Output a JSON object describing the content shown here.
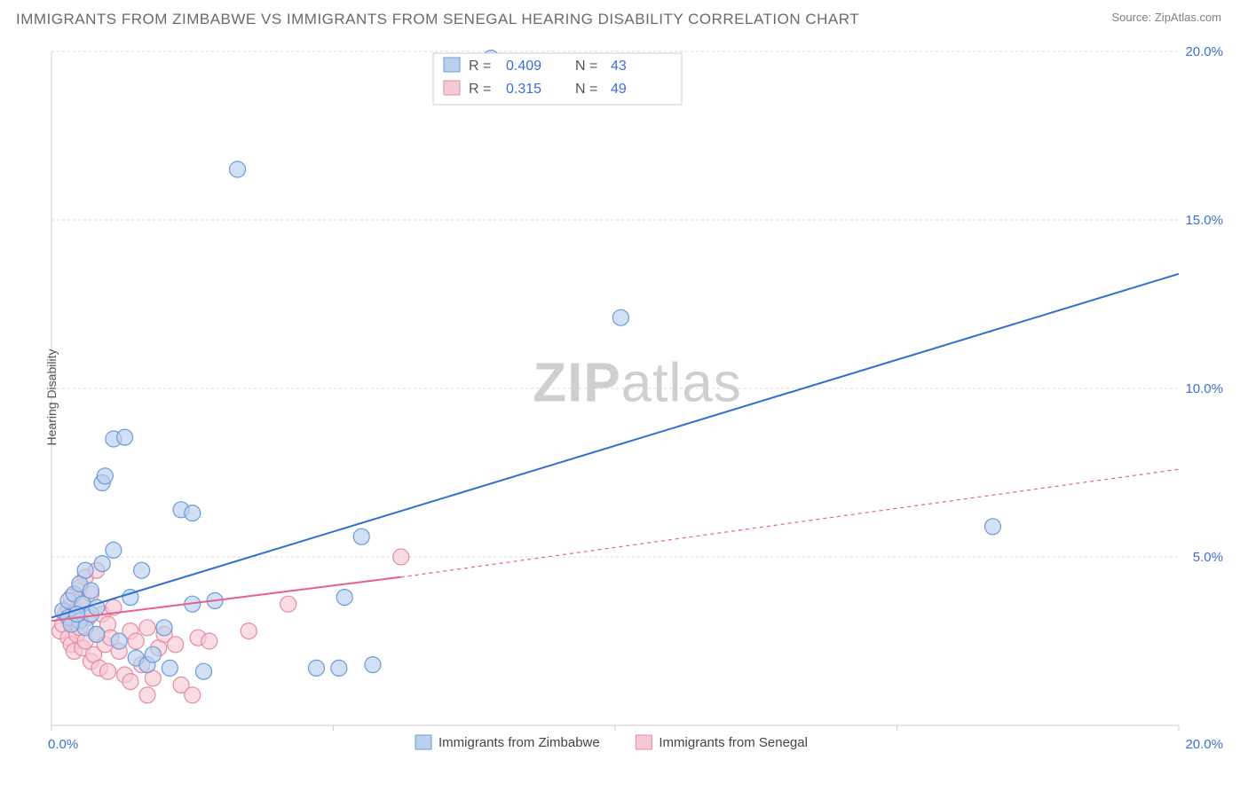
{
  "title": "IMMIGRANTS FROM ZIMBABWE VS IMMIGRANTS FROM SENEGAL HEARING DISABILITY CORRELATION CHART",
  "source_label": "Source: ZipAtlas.com",
  "y_axis_label": "Hearing Disability",
  "watermark_bold": "ZIP",
  "watermark_rest": "atlas",
  "chart": {
    "type": "scatter",
    "background_color": "#ffffff",
    "grid_color": "#d8d8d8",
    "axis_color": "#cfcfcf",
    "text_color": "#6a6a6a",
    "tick_label_color": "#3b6fd6",
    "xlim": [
      0,
      20
    ],
    "ylim": [
      0,
      20
    ],
    "x_ticks": [
      0,
      5,
      10,
      15,
      20
    ],
    "y_ticks": [
      0,
      5,
      10,
      15,
      20
    ],
    "x_tick_labels": [
      "0.0%",
      "",
      "",
      "",
      "20.0%"
    ],
    "y_tick_labels": [
      "",
      "5.0%",
      "10.0%",
      "15.0%",
      "20.0%"
    ],
    "x_origin_label": "0.0%",
    "marker_radius": 9,
    "marker_stroke_width": 1.2,
    "line_width": 2,
    "dash_pattern": "4 4",
    "series": [
      {
        "name": "Immigrants from Zimbabwe",
        "fill": "#b9d0ee",
        "stroke": "#6a9bd8",
        "line_color": "#2f6fd0",
        "trend_start": [
          0,
          3.2
        ],
        "trend_solid_end": [
          20,
          13.4
        ],
        "trend_dash_end": null,
        "R": "0.409",
        "N": "43",
        "points": [
          [
            0.2,
            3.4
          ],
          [
            0.3,
            3.7
          ],
          [
            0.3,
            3.2
          ],
          [
            0.4,
            3.9
          ],
          [
            0.5,
            4.2
          ],
          [
            0.5,
            3.1
          ],
          [
            0.55,
            3.6
          ],
          [
            0.6,
            4.6
          ],
          [
            0.6,
            2.9
          ],
          [
            0.7,
            3.3
          ],
          [
            0.7,
            4.0
          ],
          [
            0.8,
            3.5
          ],
          [
            0.9,
            7.2
          ],
          [
            0.95,
            7.4
          ],
          [
            0.9,
            4.8
          ],
          [
            1.1,
            8.5
          ],
          [
            1.3,
            8.55
          ],
          [
            1.1,
            5.2
          ],
          [
            1.2,
            2.5
          ],
          [
            1.4,
            3.8
          ],
          [
            1.5,
            2.0
          ],
          [
            1.6,
            4.6
          ],
          [
            1.7,
            1.8
          ],
          [
            1.8,
            2.1
          ],
          [
            2.0,
            2.9
          ],
          [
            2.1,
            1.7
          ],
          [
            2.3,
            6.4
          ],
          [
            2.5,
            6.3
          ],
          [
            2.5,
            3.6
          ],
          [
            2.7,
            1.6
          ],
          [
            2.9,
            3.7
          ],
          [
            5.2,
            3.8
          ],
          [
            5.5,
            5.6
          ],
          [
            5.7,
            1.8
          ],
          [
            5.1,
            1.7
          ],
          [
            4.7,
            1.7
          ],
          [
            3.3,
            16.5
          ],
          [
            7.8,
            19.8
          ],
          [
            10.1,
            12.1
          ],
          [
            16.7,
            5.9
          ],
          [
            0.35,
            3.0
          ],
          [
            0.45,
            3.3
          ],
          [
            0.8,
            2.7
          ]
        ]
      },
      {
        "name": "Immigrants from Senegal",
        "fill": "#f7c9d4",
        "stroke": "#e68aa2",
        "line_color": "#e75f8b",
        "trend_start": [
          0,
          3.1
        ],
        "trend_solid_end": [
          6.2,
          4.4
        ],
        "trend_dash_end": [
          20,
          7.6
        ],
        "R": "0.315",
        "N": "49",
        "points": [
          [
            0.15,
            2.8
          ],
          [
            0.2,
            3.0
          ],
          [
            0.25,
            3.3
          ],
          [
            0.3,
            2.6
          ],
          [
            0.3,
            3.5
          ],
          [
            0.35,
            2.4
          ],
          [
            0.35,
            3.8
          ],
          [
            0.4,
            3.1
          ],
          [
            0.4,
            2.2
          ],
          [
            0.45,
            3.4
          ],
          [
            0.45,
            2.7
          ],
          [
            0.5,
            4.1
          ],
          [
            0.5,
            2.9
          ],
          [
            0.55,
            2.3
          ],
          [
            0.55,
            3.6
          ],
          [
            0.6,
            4.4
          ],
          [
            0.6,
            2.5
          ],
          [
            0.65,
            3.2
          ],
          [
            0.7,
            1.9
          ],
          [
            0.7,
            3.9
          ],
          [
            0.75,
            2.1
          ],
          [
            0.8,
            2.7
          ],
          [
            0.8,
            4.6
          ],
          [
            0.85,
            1.7
          ],
          [
            0.9,
            3.3
          ],
          [
            0.95,
            2.4
          ],
          [
            1.0,
            1.6
          ],
          [
            1.0,
            3.0
          ],
          [
            1.05,
            2.6
          ],
          [
            1.1,
            3.5
          ],
          [
            1.2,
            2.2
          ],
          [
            1.3,
            1.5
          ],
          [
            1.4,
            2.8
          ],
          [
            1.4,
            1.3
          ],
          [
            1.5,
            2.5
          ],
          [
            1.6,
            1.8
          ],
          [
            1.7,
            2.9
          ],
          [
            1.8,
            1.4
          ],
          [
            1.9,
            2.3
          ],
          [
            2.0,
            2.7
          ],
          [
            2.2,
            2.4
          ],
          [
            2.3,
            1.2
          ],
          [
            2.5,
            0.9
          ],
          [
            2.6,
            2.6
          ],
          [
            2.8,
            2.5
          ],
          [
            3.5,
            2.8
          ],
          [
            4.2,
            3.6
          ],
          [
            1.7,
            0.9
          ],
          [
            6.2,
            5.0
          ]
        ]
      }
    ],
    "legend_top": {
      "box_stroke": "#cfcfcf",
      "r_label": "R =",
      "n_label": "N ="
    },
    "legend_bottom": {
      "items": [
        "Immigrants from Zimbabwe",
        "Immigrants from Senegal"
      ]
    }
  }
}
